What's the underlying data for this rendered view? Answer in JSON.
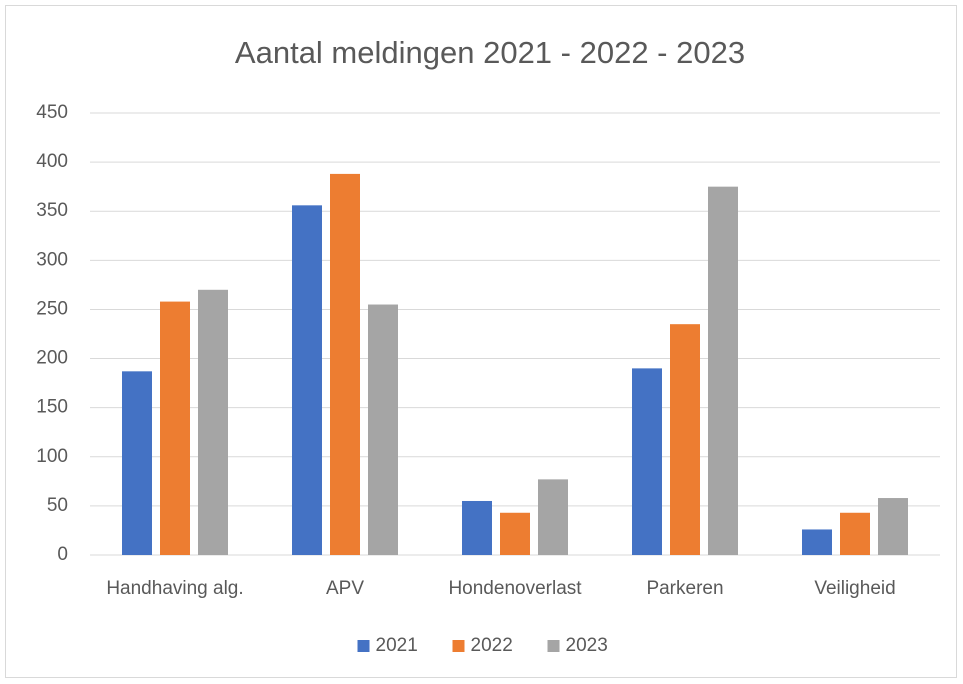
{
  "chart_data": {
    "type": "bar",
    "title": "Aantal meldingen 2021 - 2022 - 2023",
    "categories": [
      "Handhaving alg.",
      "APV",
      "Hondenoverlast",
      "Parkeren",
      "Veiligheid"
    ],
    "series": [
      {
        "name": "2021",
        "color": "#4472c4",
        "values": [
          187,
          356,
          55,
          190,
          26
        ]
      },
      {
        "name": "2022",
        "color": "#ed7d31",
        "values": [
          258,
          388,
          43,
          235,
          43
        ]
      },
      {
        "name": "2023",
        "color": "#a5a5a5",
        "values": [
          270,
          255,
          77,
          375,
          58
        ]
      }
    ],
    "ylim": [
      0,
      450
    ],
    "yticks": [
      0,
      50,
      100,
      150,
      200,
      250,
      300,
      350,
      400,
      450
    ],
    "grid": true,
    "legend": "bottom"
  }
}
